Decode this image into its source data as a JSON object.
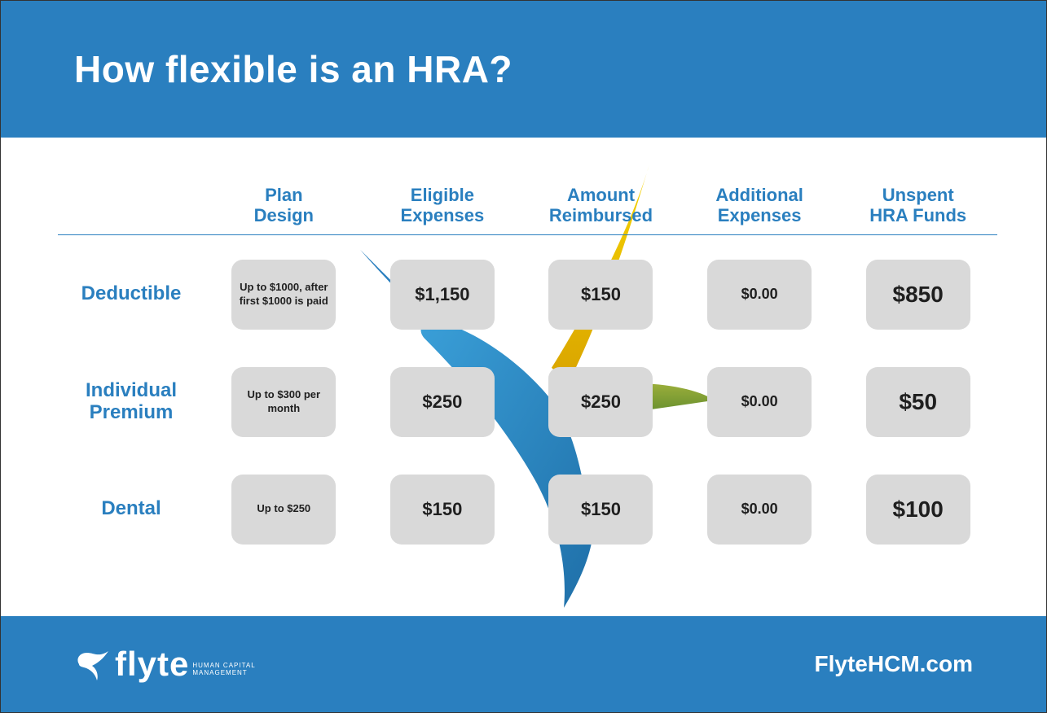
{
  "colors": {
    "brand_blue": "#2a7fbf",
    "header_text": "#ffffff",
    "accent_text": "#2a7fbf",
    "chip_bg": "#d9d9d9",
    "chip_text": "#1f1f1f",
    "page_bg": "#ffffff",
    "bird_blue": "#2a7fbf",
    "bird_yellow_top": "#f6d400",
    "bird_yellow_bot": "#d9a400",
    "bird_green_top": "#9caf3b",
    "bird_green_bot": "#5f8a2d"
  },
  "header": {
    "title": "How flexible is an HRA?"
  },
  "footer": {
    "brand_bold": "flyte",
    "brand_sub_line1": "HUMAN CAPITAL",
    "brand_sub_line2": "MANAGEMENT",
    "url": "FlyteHCM.com"
  },
  "table": {
    "columns": [
      "Plan\nDesign",
      "Eligible\nExpenses",
      "Amount\nReimbursed",
      "Additional\nExpenses",
      "Unspent\nHRA Funds"
    ],
    "rows": [
      {
        "label": "Deductible",
        "cells": [
          {
            "text": "Up to $1000, after first $1000 is paid",
            "style": "small"
          },
          {
            "text": "$1,150",
            "style": "med"
          },
          {
            "text": "$150",
            "style": "med"
          },
          {
            "text": "$0.00",
            "style": "medsm"
          },
          {
            "text": "$850",
            "style": "big"
          }
        ]
      },
      {
        "label": "Individual\nPremium",
        "cells": [
          {
            "text": "Up to $300 per month",
            "style": "small"
          },
          {
            "text": "$250",
            "style": "med"
          },
          {
            "text": "$250",
            "style": "med"
          },
          {
            "text": "$0.00",
            "style": "medsm"
          },
          {
            "text": "$50",
            "style": "big"
          }
        ]
      },
      {
        "label": "Dental",
        "cells": [
          {
            "text": "Up to $250",
            "style": "small"
          },
          {
            "text": "$150",
            "style": "med"
          },
          {
            "text": "$150",
            "style": "med"
          },
          {
            "text": "$0.00",
            "style": "medsm"
          },
          {
            "text": "$100",
            "style": "big"
          }
        ]
      }
    ]
  }
}
